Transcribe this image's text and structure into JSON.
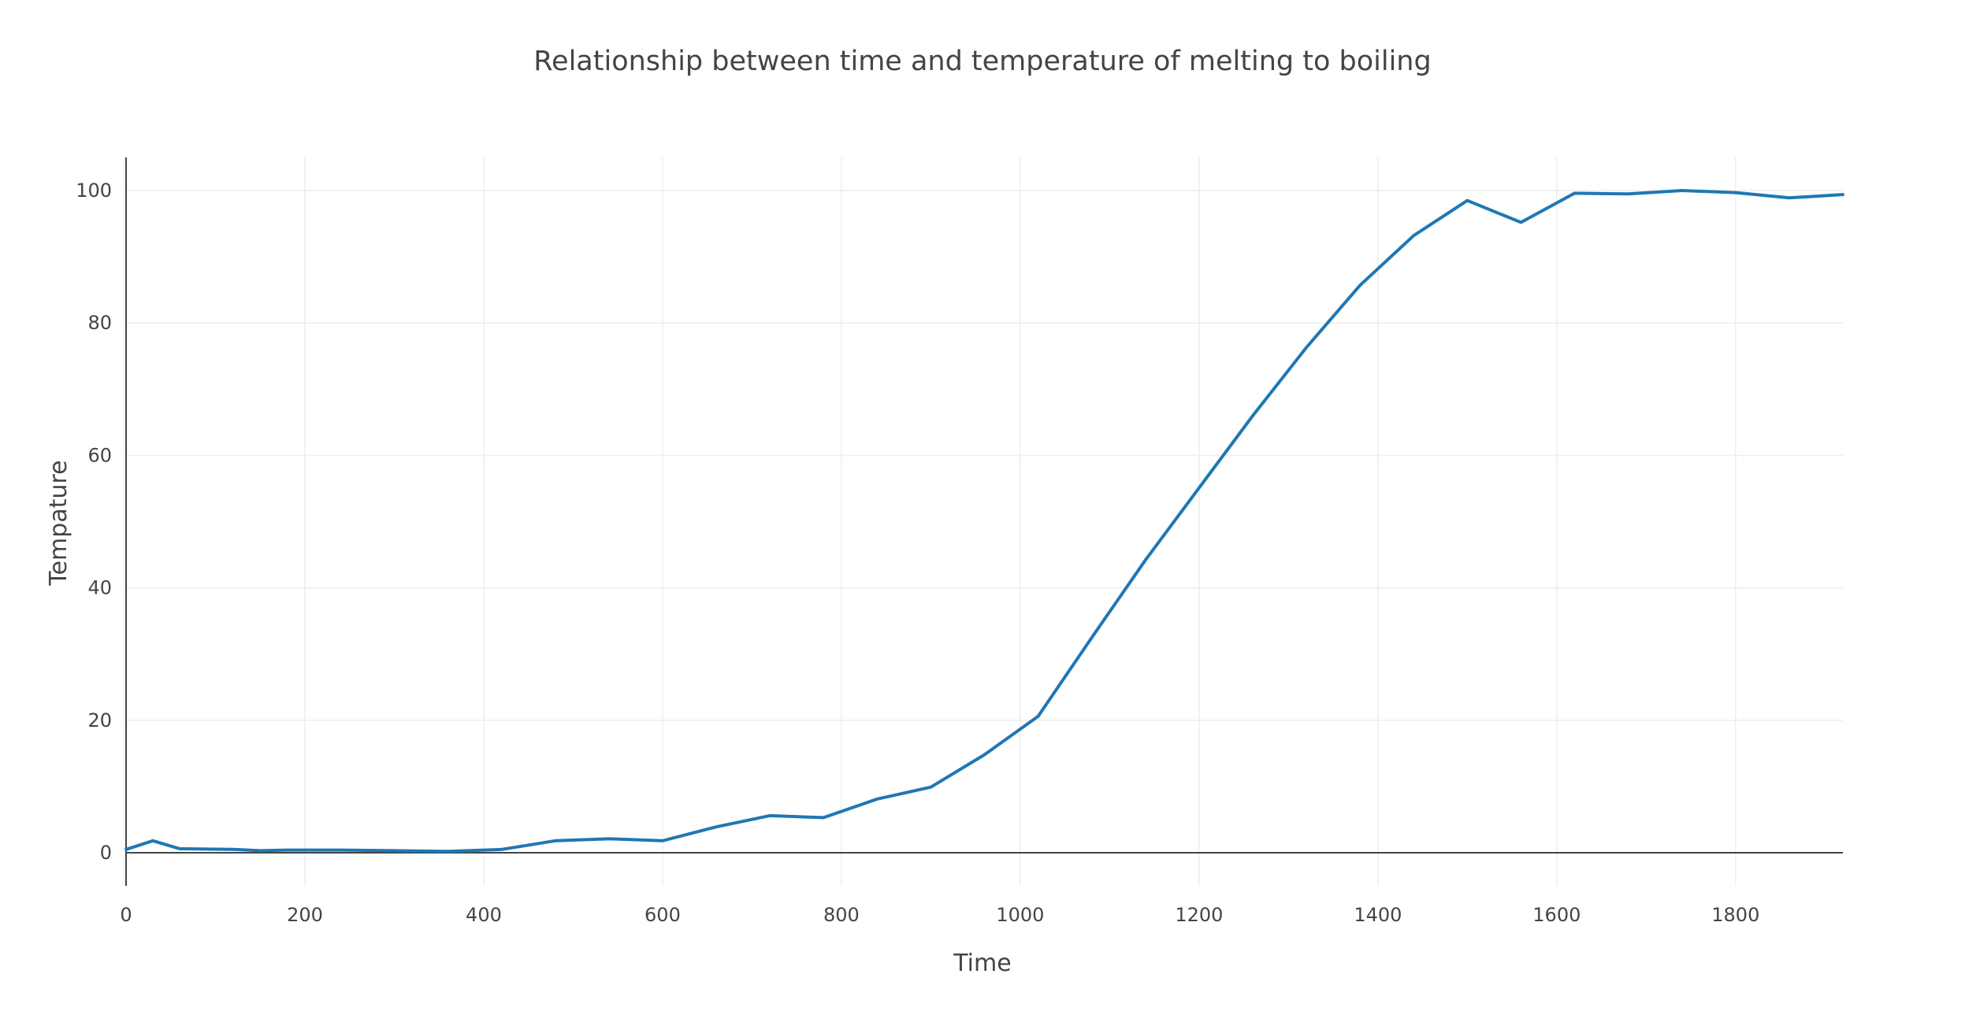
{
  "chart_data": {
    "type": "line",
    "title": "Relationship between time and temperature of melting to boiling",
    "xlabel": "Time",
    "ylabel": "Tempature",
    "xlim": [
      0,
      1920
    ],
    "ylim": [
      -5,
      105
    ],
    "x_ticks": [
      0,
      200,
      400,
      600,
      800,
      1000,
      1200,
      1400,
      1600,
      1800
    ],
    "y_ticks": [
      0,
      20,
      40,
      60,
      80,
      100
    ],
    "grid": true,
    "legend": "none",
    "series": [
      {
        "color": "#1f77b4",
        "x": [
          0,
          30,
          60,
          120,
          150,
          180,
          240,
          300,
          360,
          420,
          480,
          540,
          600,
          660,
          720,
          780,
          840,
          900,
          960,
          1020,
          1080,
          1140,
          1200,
          1260,
          1320,
          1380,
          1440,
          1500,
          1560,
          1620,
          1680,
          1740,
          1800,
          1860,
          1920
        ],
        "y": [
          0.5,
          1.8,
          0.6,
          0.5,
          0.3,
          0.4,
          0.4,
          0.3,
          0.2,
          0.5,
          1.8,
          2.1,
          1.8,
          3.9,
          5.6,
          5.3,
          8.1,
          9.9,
          14.8,
          20.6,
          32.5,
          44.2,
          55.1,
          66.0,
          76.3,
          85.7,
          93.2,
          98.5,
          95.2,
          99.6,
          99.5,
          100.0,
          99.7,
          98.9,
          99.4
        ]
      }
    ]
  }
}
